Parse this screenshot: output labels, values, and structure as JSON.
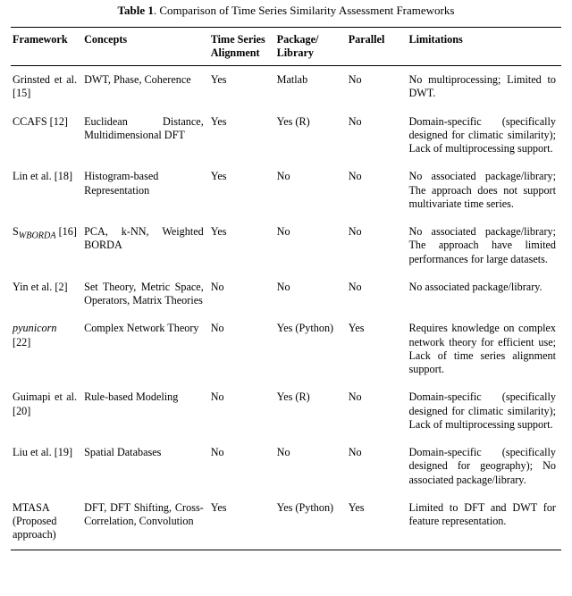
{
  "caption": {
    "label": "Table 1",
    "text": ". Comparison of Time Series Similarity Assessment Frameworks"
  },
  "columns": [
    "Framework",
    "Concepts",
    "Time Series Alignment",
    "Package/ Library",
    "Parallel",
    "Limitations"
  ],
  "rows": [
    {
      "framework_html": "Grinsted et al. [<span class=\"ref\">15</span>]",
      "concepts_html": "DWT, Phase, Coherence",
      "alignment": "Yes",
      "package": "Matlab",
      "parallel": "No",
      "limitations_html": "No multiprocessing; Limited to DWT."
    },
    {
      "framework_html": "CCAFS [<span class=\"ref\">12</span>]",
      "concepts_html": "Euclidean Distance, Multidimensional DFT",
      "alignment": "Yes",
      "package": "Yes (R)",
      "parallel": "No",
      "limitations_html": "Domain-specific (specifically designed for climatic similarity); Lack of multiprocessing support."
    },
    {
      "framework_html": "Lin et al. [<span class=\"ref\">18</span>]",
      "concepts_html": "Histogram-based Representation",
      "alignment": "Yes",
      "package": "No",
      "parallel": "No",
      "limitations_html": "No associated package/library; The approach does not support multivariate time series."
    },
    {
      "framework_html": "S<sub><span class=\"sub\">WBORDA</span></sub> [<span class=\"ref\">16</span>]",
      "concepts_html": "PCA, k-NN, Weighted BORDA",
      "alignment": "Yes",
      "package": "No",
      "parallel": "No",
      "limitations_html": "No associated package/library; The approach have limited performances for large datasets."
    },
    {
      "framework_html": "Yin et al. [<span class=\"ref\">2</span>]",
      "concepts_html": "Set Theory, Metric Space, Operators, Matrix Theories",
      "alignment": "No",
      "package": "No",
      "parallel": "No",
      "limitations_html": "No associated package/library."
    },
    {
      "framework_html": "<em class=\"pkg\">pyunicorn</em> [<span class=\"ref\">22</span>]",
      "concepts_html": "Complex Network Theory",
      "alignment": "No",
      "package": "Yes (Python)",
      "parallel": "Yes",
      "limitations_html": "Requires knowledge on complex network theory for efficient use; Lack of time series alignment support."
    },
    {
      "framework_html": "Guimapi et al. [<span class=\"ref\">20</span>]",
      "concepts_html": "Rule-based Modeling",
      "alignment": "No",
      "package": "Yes (R)",
      "parallel": "No",
      "limitations_html": "Domain-specific (specifically designed for climatic similarity); Lack of multiprocessing support."
    },
    {
      "framework_html": "Liu et al. [<span class=\"ref\">19</span>]",
      "concepts_html": "Spatial Databases",
      "alignment": "No",
      "package": "No",
      "parallel": "No",
      "limitations_html": "Domain-specific (specifically designed for geography); No associated package/library."
    },
    {
      "framework_html": "MTASA (Proposed approach)",
      "concepts_html": "DFT, DFT Shifting, Cross-Correlation, Convolution",
      "alignment": "Yes",
      "package": "Yes (Python)",
      "parallel": "Yes",
      "limitations_html": "Limited to DFT and DWT for feature representation."
    }
  ],
  "style": {
    "font_family": "Times New Roman",
    "font_size_pt": 9,
    "caption_font_size_pt": 10,
    "text_color": "#000000",
    "background_color": "#ffffff",
    "rule_color": "#000000",
    "column_widths_pct": [
      13,
      23,
      12,
      13,
      11,
      28
    ]
  }
}
